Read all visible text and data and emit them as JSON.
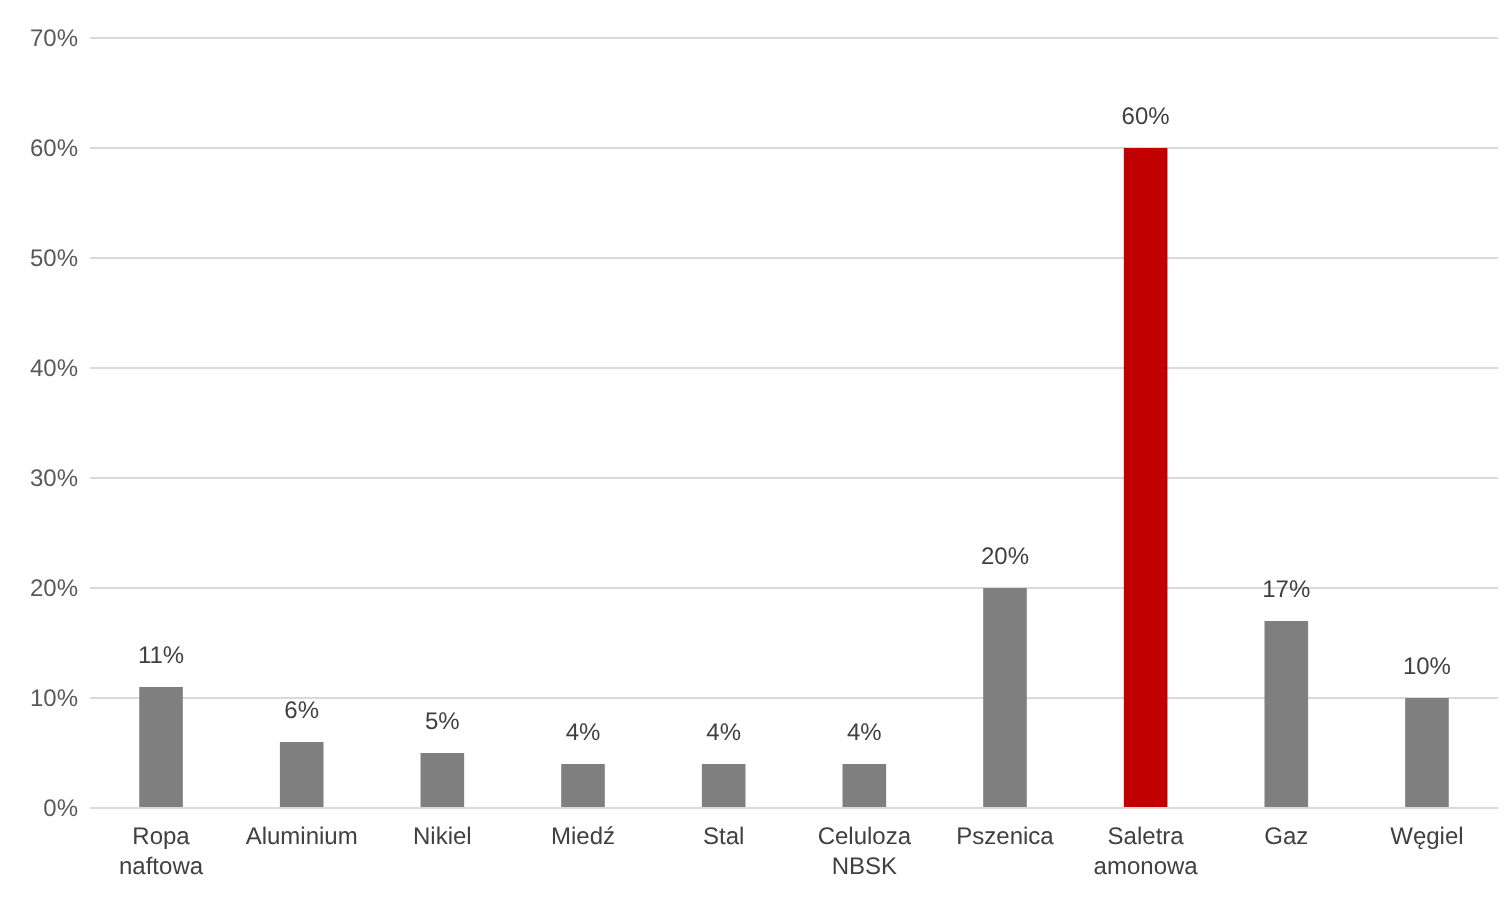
{
  "chart_data": {
    "type": "bar",
    "categories": [
      "Ropa naftowa",
      "Aluminium",
      "Nikiel",
      "Miedź",
      "Stal",
      "Celuloza NBSK",
      "Pszenica",
      "Saletra amonowa",
      "Gaz",
      "Węgiel"
    ],
    "values": [
      11,
      6,
      5,
      4,
      4,
      4,
      20,
      60,
      17,
      10
    ],
    "colors": [
      "#7f7f7f",
      "#7f7f7f",
      "#7f7f7f",
      "#7f7f7f",
      "#7f7f7f",
      "#7f7f7f",
      "#7f7f7f",
      "#c00000",
      "#7f7f7f",
      "#7f7f7f"
    ],
    "value_labels": [
      "11%",
      "6%",
      "5%",
      "4%",
      "4%",
      "4%",
      "20%",
      "60%",
      "17%",
      "10%"
    ],
    "ylim": [
      0,
      70
    ],
    "yticks": [
      {
        "value": 0,
        "label": "0%"
      },
      {
        "value": 10,
        "label": "10%"
      },
      {
        "value": 20,
        "label": "20%"
      },
      {
        "value": 30,
        "label": "30%"
      },
      {
        "value": 40,
        "label": "40%"
      },
      {
        "value": 50,
        "label": "50%"
      },
      {
        "value": 60,
        "label": "60%"
      },
      {
        "value": 70,
        "label": "70%"
      }
    ],
    "grid": "y"
  }
}
